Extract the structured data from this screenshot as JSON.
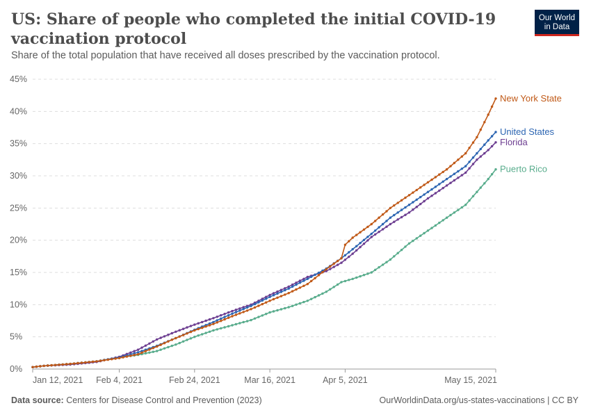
{
  "header": {
    "title": "US: Share of people who completed the initial COVID-19 vaccination protocol",
    "subtitle": "Share of the total population that have received all doses prescribed by the vaccination protocol.",
    "logo_line1": "Our World",
    "logo_line2": "in Data"
  },
  "footer": {
    "source_label": "Data source:",
    "source_text": "Centers for Disease Control and Prevention (2023)",
    "url_text": "OurWorldinData.org/us-states-vaccinations | CC BY"
  },
  "colors": {
    "New York State": "#c05917",
    "United States": "#2c65b2",
    "Florida": "#6d3e91",
    "Puerto Rico": "#58ac8c",
    "grid": "#dddddd",
    "axis": "#666666"
  },
  "chart_data": {
    "type": "line",
    "title": "US: Share of people who completed the initial COVID-19 vaccination protocol",
    "ylim": [
      0,
      45
    ],
    "y_ticks": [
      0,
      5,
      10,
      15,
      20,
      25,
      30,
      35,
      40,
      45
    ],
    "y_tick_labels": [
      "0%",
      "5%",
      "10%",
      "15%",
      "20%",
      "25%",
      "30%",
      "35%",
      "40%",
      "45%"
    ],
    "x_range": [
      "2021-01-12",
      "2021-05-15"
    ],
    "x_ticks": [
      "2021-01-12",
      "2021-02-04",
      "2021-02-24",
      "2021-03-16",
      "2021-04-05",
      "2021-05-15"
    ],
    "x_tick_labels": [
      "Jan 12, 2021",
      "Feb 4, 2021",
      "Feb 24, 2021",
      "Mar 16, 2021",
      "Apr 5, 2021",
      "May 15, 2021"
    ],
    "grid": "horizontal dashed",
    "legend": "line-end labels",
    "series": [
      {
        "name": "New York State",
        "points": [
          [
            "2021-01-12",
            0.3
          ],
          [
            "2021-01-15",
            0.5
          ],
          [
            "2021-01-22",
            0.8
          ],
          [
            "2021-01-29",
            1.2
          ],
          [
            "2021-02-04",
            1.7
          ],
          [
            "2021-02-09",
            2.3
          ],
          [
            "2021-02-14",
            3.5
          ],
          [
            "2021-02-19",
            4.8
          ],
          [
            "2021-02-24",
            6.0
          ],
          [
            "2021-03-01",
            7.0
          ],
          [
            "2021-03-06",
            8.2
          ],
          [
            "2021-03-11",
            9.3
          ],
          [
            "2021-03-16",
            10.6
          ],
          [
            "2021-03-21",
            11.8
          ],
          [
            "2021-03-26",
            13.2
          ],
          [
            "2021-03-31",
            15.5
          ],
          [
            "2021-04-04",
            17.2
          ],
          [
            "2021-04-05",
            19.3
          ],
          [
            "2021-04-07",
            20.4
          ],
          [
            "2021-04-12",
            22.5
          ],
          [
            "2021-04-17",
            25.0
          ],
          [
            "2021-04-22",
            27.0
          ],
          [
            "2021-04-27",
            29.0
          ],
          [
            "2021-05-02",
            31.0
          ],
          [
            "2021-05-07",
            33.5
          ],
          [
            "2021-05-10",
            36.0
          ],
          [
            "2021-05-13",
            39.5
          ],
          [
            "2021-05-15",
            42.0
          ]
        ]
      },
      {
        "name": "United States",
        "points": [
          [
            "2021-01-12",
            0.3
          ],
          [
            "2021-01-15",
            0.5
          ],
          [
            "2021-01-22",
            0.8
          ],
          [
            "2021-01-29",
            1.2
          ],
          [
            "2021-02-04",
            1.8
          ],
          [
            "2021-02-09",
            2.6
          ],
          [
            "2021-02-14",
            3.6
          ],
          [
            "2021-02-19",
            4.8
          ],
          [
            "2021-02-24",
            6.1
          ],
          [
            "2021-03-01",
            7.3
          ],
          [
            "2021-03-06",
            8.6
          ],
          [
            "2021-03-11",
            9.8
          ],
          [
            "2021-03-16",
            11.2
          ],
          [
            "2021-03-21",
            12.5
          ],
          [
            "2021-03-26",
            14.0
          ],
          [
            "2021-03-31",
            15.6
          ],
          [
            "2021-04-04",
            17.2
          ],
          [
            "2021-04-07",
            18.6
          ],
          [
            "2021-04-12",
            21.0
          ],
          [
            "2021-04-17",
            23.5
          ],
          [
            "2021-04-22",
            25.5
          ],
          [
            "2021-04-27",
            27.5
          ],
          [
            "2021-05-02",
            29.5
          ],
          [
            "2021-05-07",
            31.5
          ],
          [
            "2021-05-10",
            33.5
          ],
          [
            "2021-05-13",
            35.5
          ],
          [
            "2021-05-15",
            36.8
          ]
        ]
      },
      {
        "name": "Florida",
        "points": [
          [
            "2021-01-12",
            0.3
          ],
          [
            "2021-01-15",
            0.5
          ],
          [
            "2021-01-22",
            0.7
          ],
          [
            "2021-01-29",
            1.1
          ],
          [
            "2021-02-04",
            1.9
          ],
          [
            "2021-02-09",
            3.0
          ],
          [
            "2021-02-14",
            4.6
          ],
          [
            "2021-02-19",
            5.8
          ],
          [
            "2021-02-24",
            6.9
          ],
          [
            "2021-03-01",
            7.9
          ],
          [
            "2021-03-06",
            9.0
          ],
          [
            "2021-03-11",
            10.0
          ],
          [
            "2021-03-16",
            11.5
          ],
          [
            "2021-03-21",
            12.8
          ],
          [
            "2021-03-26",
            14.3
          ],
          [
            "2021-03-31",
            15.2
          ],
          [
            "2021-04-04",
            16.5
          ],
          [
            "2021-04-07",
            17.9
          ],
          [
            "2021-04-12",
            20.5
          ],
          [
            "2021-04-17",
            22.5
          ],
          [
            "2021-04-22",
            24.3
          ],
          [
            "2021-04-27",
            26.5
          ],
          [
            "2021-05-02",
            28.5
          ],
          [
            "2021-05-07",
            30.5
          ],
          [
            "2021-05-10",
            32.5
          ],
          [
            "2021-05-13",
            34.0
          ],
          [
            "2021-05-15",
            35.2
          ]
        ]
      },
      {
        "name": "Puerto Rico",
        "points": [
          [
            "2021-01-12",
            0.3
          ],
          [
            "2021-01-15",
            0.5
          ],
          [
            "2021-01-22",
            0.8
          ],
          [
            "2021-01-29",
            1.2
          ],
          [
            "2021-02-04",
            1.8
          ],
          [
            "2021-02-09",
            2.2
          ],
          [
            "2021-02-14",
            2.8
          ],
          [
            "2021-02-19",
            3.8
          ],
          [
            "2021-02-24",
            5.0
          ],
          [
            "2021-03-01",
            6.0
          ],
          [
            "2021-03-06",
            6.8
          ],
          [
            "2021-03-11",
            7.6
          ],
          [
            "2021-03-16",
            8.8
          ],
          [
            "2021-03-21",
            9.6
          ],
          [
            "2021-03-26",
            10.6
          ],
          [
            "2021-03-31",
            12.0
          ],
          [
            "2021-04-04",
            13.5
          ],
          [
            "2021-04-07",
            14.0
          ],
          [
            "2021-04-12",
            15.0
          ],
          [
            "2021-04-17",
            17.0
          ],
          [
            "2021-04-22",
            19.5
          ],
          [
            "2021-04-27",
            21.5
          ],
          [
            "2021-05-02",
            23.5
          ],
          [
            "2021-05-07",
            25.5
          ],
          [
            "2021-05-10",
            27.5
          ],
          [
            "2021-05-13",
            29.5
          ],
          [
            "2021-05-15",
            31.0
          ]
        ]
      }
    ]
  }
}
